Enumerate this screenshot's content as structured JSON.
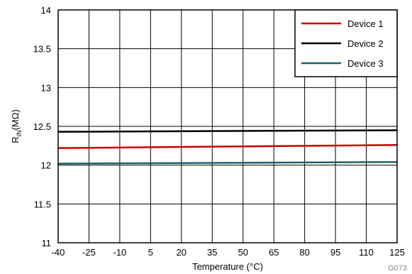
{
  "chart_data": {
    "type": "line",
    "xlabel": "Temperature (°C)",
    "ylabel_main": "R",
    "ylabel_sub": "IN",
    "ylabel_unit": "(MΩ)",
    "x_ticks": [
      -40,
      -25,
      -10,
      5,
      20,
      35,
      50,
      65,
      80,
      95,
      110,
      125
    ],
    "y_ticks": [
      11,
      11.5,
      12,
      12.5,
      13,
      13.5,
      14
    ],
    "y_tick_labels": [
      "11",
      "11.5",
      "12",
      "12.5",
      "13",
      "13.5",
      "14"
    ],
    "xlim": [
      -40,
      125
    ],
    "ylim": [
      11,
      14
    ],
    "grid": true,
    "legend_position": "top-right",
    "series": [
      {
        "name": "Device 1",
        "color": "#cc0000",
        "x": [
          -40,
          125
        ],
        "y": [
          12.22,
          12.26
        ]
      },
      {
        "name": "Device 2",
        "color": "#000000",
        "x": [
          -40,
          125
        ],
        "y": [
          12.43,
          12.45
        ]
      },
      {
        "name": "Device 3",
        "color": "#1f5f6b",
        "x": [
          -40,
          125
        ],
        "y": [
          12.02,
          12.04
        ]
      }
    ],
    "figure_code": "G073"
  }
}
